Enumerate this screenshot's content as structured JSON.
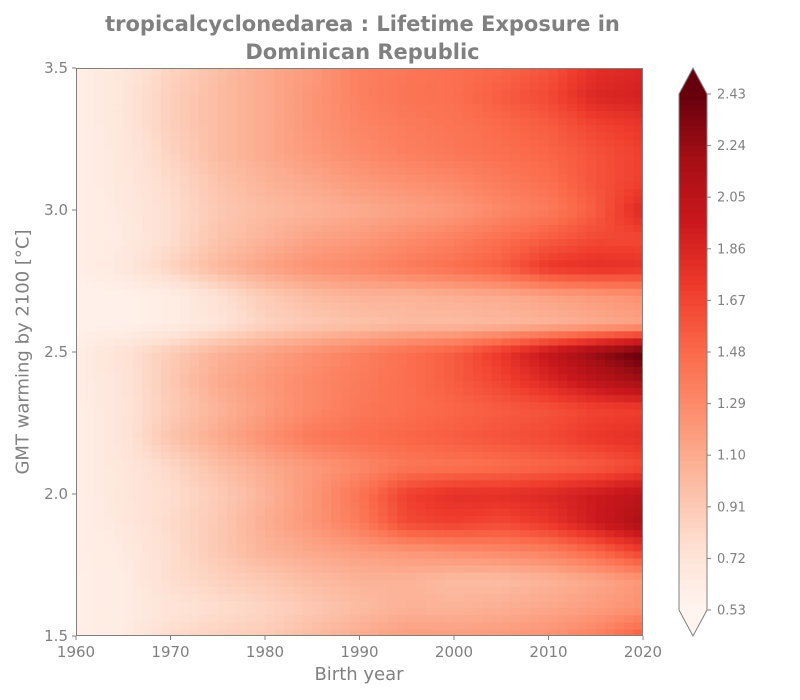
{
  "chart_data": {
    "type": "heatmap",
    "title": "tropicalcyclonedarea : Lifetime Exposure in Dominican Republic",
    "title_lines": [
      "tropicalcyclonedarea : Lifetime Exposure in",
      "Dominican Republic"
    ],
    "xlabel": "Birth year",
    "ylabel": "GMT warming by 2100 [°C]",
    "xlim": [
      1960,
      2020
    ],
    "ylim": [
      1.5,
      3.5
    ],
    "x_ticks": [
      "1960",
      "1970",
      "1980",
      "1990",
      "2000",
      "2010",
      "2020"
    ],
    "y_ticks": [
      "1.5",
      "2.0",
      "2.5",
      "3.0",
      "3.5"
    ],
    "colormap": "Reds",
    "colorbar": {
      "extend": "both",
      "vmin": 0.53,
      "vmax": 2.43,
      "ticks": [
        "0.53",
        "0.72",
        "0.91",
        "1.10",
        "1.29",
        "1.48",
        "1.67",
        "1.86",
        "2.05",
        "2.24",
        "2.43"
      ]
    },
    "x": [
      1960,
      1965,
      1970,
      1975,
      1980,
      1985,
      1990,
      1995,
      2000,
      2005,
      2010,
      2015,
      2020
    ],
    "y": [
      1.5,
      1.6,
      1.7,
      1.8,
      1.9,
      2.0,
      2.1,
      2.2,
      2.3,
      2.4,
      2.5,
      2.6,
      2.7,
      2.8,
      2.9,
      3.0,
      3.1,
      3.2,
      3.3,
      3.4,
      3.5
    ],
    "z": [
      [
        0.6,
        0.64,
        0.8,
        0.86,
        0.9,
        1.0,
        1.1,
        1.18,
        1.18,
        1.2,
        1.25,
        1.35,
        1.55
      ],
      [
        0.6,
        0.63,
        0.72,
        0.78,
        0.84,
        0.92,
        1.0,
        1.06,
        1.05,
        1.08,
        1.12,
        1.18,
        1.25
      ],
      [
        0.6,
        0.63,
        0.78,
        0.86,
        0.92,
        1.0,
        1.05,
        1.05,
        1.0,
        1.0,
        1.05,
        1.12,
        1.22
      ],
      [
        0.6,
        0.65,
        0.78,
        0.92,
        1.05,
        1.12,
        1.18,
        1.22,
        1.26,
        1.3,
        1.35,
        1.5,
        1.7
      ],
      [
        0.6,
        0.68,
        0.8,
        0.92,
        1.08,
        1.22,
        1.38,
        1.65,
        1.7,
        1.65,
        1.75,
        1.95,
        2.15
      ],
      [
        0.6,
        0.7,
        0.78,
        0.9,
        1.05,
        1.22,
        1.42,
        1.7,
        1.8,
        1.8,
        1.85,
        1.95,
        2.05
      ],
      [
        0.6,
        0.7,
        0.82,
        0.98,
        1.1,
        1.2,
        1.3,
        1.4,
        1.42,
        1.45,
        1.5,
        1.55,
        1.65
      ],
      [
        0.6,
        0.72,
        0.95,
        1.1,
        1.25,
        1.4,
        1.45,
        1.5,
        1.55,
        1.6,
        1.65,
        1.75,
        1.8
      ],
      [
        0.6,
        0.72,
        0.9,
        1.05,
        1.18,
        1.3,
        1.4,
        1.45,
        1.5,
        1.55,
        1.6,
        1.68,
        1.7
      ],
      [
        0.62,
        0.72,
        0.92,
        1.1,
        1.2,
        1.3,
        1.38,
        1.45,
        1.55,
        1.68,
        1.85,
        2.05,
        2.2
      ],
      [
        0.62,
        0.74,
        0.9,
        1.05,
        1.15,
        1.25,
        1.35,
        1.45,
        1.55,
        1.75,
        2.0,
        2.25,
        2.45
      ],
      [
        0.58,
        0.58,
        0.62,
        0.72,
        0.85,
        0.92,
        0.96,
        1.0,
        1.0,
        1.02,
        1.05,
        1.1,
        1.15
      ],
      [
        0.58,
        0.58,
        0.62,
        0.75,
        0.9,
        1.0,
        1.05,
        1.05,
        1.08,
        1.1,
        1.15,
        1.2,
        1.25
      ],
      [
        0.6,
        0.68,
        0.85,
        1.02,
        1.15,
        1.25,
        1.3,
        1.38,
        1.45,
        1.55,
        1.75,
        1.8,
        1.78
      ],
      [
        0.6,
        0.65,
        0.78,
        0.95,
        1.05,
        1.15,
        1.2,
        1.28,
        1.35,
        1.45,
        1.55,
        1.65,
        1.65
      ],
      [
        0.6,
        0.66,
        0.78,
        0.92,
        1.0,
        1.05,
        1.1,
        1.15,
        1.2,
        1.3,
        1.38,
        1.55,
        1.85
      ],
      [
        0.6,
        0.68,
        0.8,
        0.95,
        1.05,
        1.12,
        1.2,
        1.25,
        1.3,
        1.38,
        1.45,
        1.6,
        1.7
      ],
      [
        0.6,
        0.68,
        0.85,
        1.0,
        1.1,
        1.2,
        1.28,
        1.35,
        1.4,
        1.45,
        1.5,
        1.6,
        1.7
      ],
      [
        0.6,
        0.7,
        0.88,
        1.0,
        1.1,
        1.22,
        1.32,
        1.38,
        1.42,
        1.48,
        1.55,
        1.68,
        1.75
      ],
      [
        0.6,
        0.7,
        0.88,
        1.0,
        1.1,
        1.22,
        1.35,
        1.42,
        1.45,
        1.55,
        1.65,
        1.85,
        1.9
      ],
      [
        0.6,
        0.7,
        0.85,
        0.98,
        1.1,
        1.2,
        1.35,
        1.4,
        1.45,
        1.5,
        1.6,
        1.8,
        1.85
      ]
    ]
  }
}
